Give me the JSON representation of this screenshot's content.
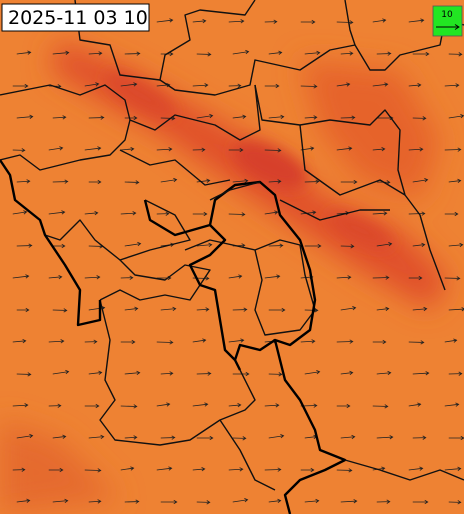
{
  "timestamp": "2025-11 03 10",
  "legend": {
    "label": "10"
  }
}
